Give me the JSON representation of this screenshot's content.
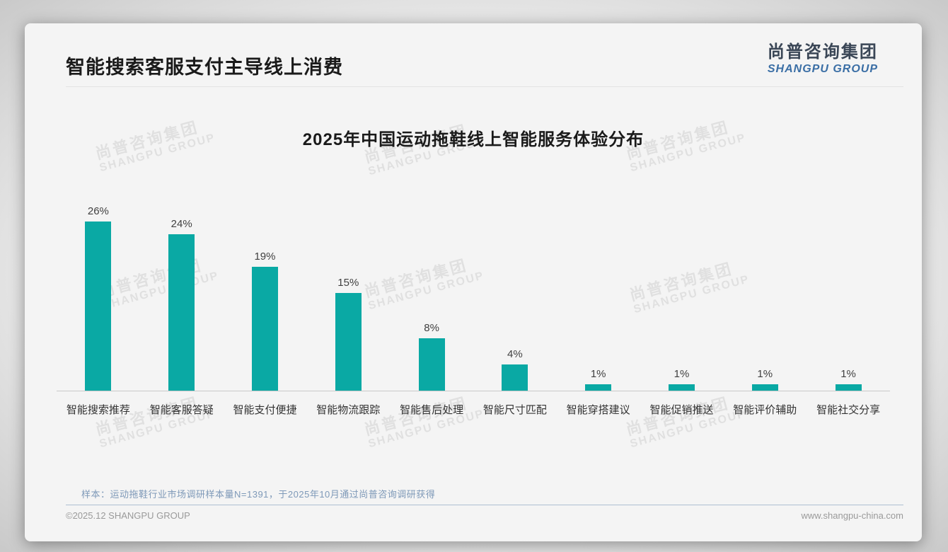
{
  "header": {
    "title": "智能搜索客服支付主导线上消费"
  },
  "logo": {
    "cn": "尚普咨询集团",
    "en": "SHANGPU GROUP"
  },
  "watermark": {
    "line1": "尚普咨询集团",
    "line2": "SHANGPU GROUP"
  },
  "chart_data": {
    "type": "bar",
    "title": "2025年中国运动拖鞋线上智能服务体验分布",
    "categories": [
      "智能搜索推荐",
      "智能客服答疑",
      "智能支付便捷",
      "智能物流跟踪",
      "智能售后处理",
      "智能尺寸匹配",
      "智能穿搭建议",
      "智能促销推送",
      "智能评价辅助",
      "智能社交分享"
    ],
    "values": [
      26,
      24,
      19,
      15,
      8,
      4,
      1,
      1,
      1,
      1
    ],
    "value_labels": [
      "26%",
      "24%",
      "19%",
      "15%",
      "8%",
      "4%",
      "1%",
      "1%",
      "1%",
      "1%"
    ],
    "unit": "%",
    "xlabel": "",
    "ylabel": "",
    "ylim": [
      0,
      28
    ],
    "grid": false,
    "legend": false,
    "bar_color": "#0aa9a4"
  },
  "footnote": {
    "sample": "样本：运动拖鞋行业市场调研样本量N=1391，于2025年10月通过尚普咨询调研获得"
  },
  "footer": {
    "copyright": "©2025.12 SHANGPU GROUP",
    "website": "www.shangpu-china.com"
  },
  "colors": {
    "accent_teal": "#0aa9a4",
    "title_text": "#1a1a1a",
    "logo_cn": "#3a4656",
    "logo_en": "#3a6ea5",
    "note_text": "#7e99b8",
    "footer_text": "#9a9a9a",
    "axis_line": "#c9c9c9"
  }
}
